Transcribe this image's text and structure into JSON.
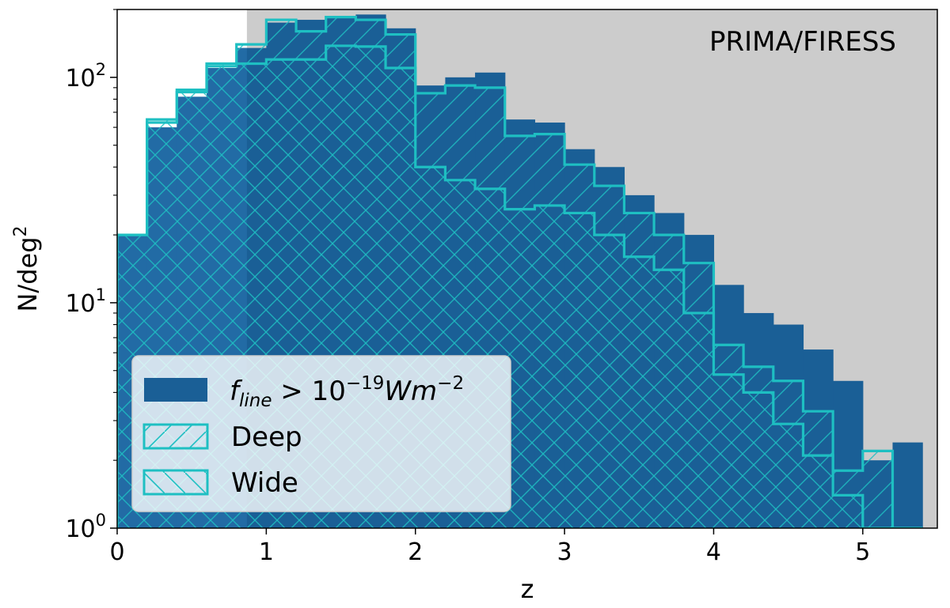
{
  "chart_data": {
    "type": "bar",
    "xlabel": "z",
    "ylabel": "N/deg",
    "ylabel_sup": "2",
    "annotation": "PRIMA/FIRESS",
    "scale_y": "log",
    "xlim": [
      0,
      5.5
    ],
    "ylim": [
      1,
      200
    ],
    "x_ticks": [
      "0",
      "1",
      "2",
      "3",
      "4",
      "5"
    ],
    "y_ticks": [
      {
        "base": "10",
        "exp": "0",
        "value": 1
      },
      {
        "base": "10",
        "exp": "1",
        "value": 10
      },
      {
        "base": "10",
        "exp": "2",
        "value": 100
      }
    ],
    "shaded_region": {
      "x_from": 0.87,
      "x_to": 5.5
    },
    "bin_edges": [
      0,
      0.2,
      0.4,
      0.6,
      0.8,
      1.0,
      1.2,
      1.4,
      1.6,
      1.8,
      2.0,
      2.2,
      2.4,
      2.6,
      2.8,
      3.0,
      3.2,
      3.4,
      3.6,
      3.8,
      4.0,
      4.2,
      4.4,
      4.6,
      4.8,
      5.0,
      5.2,
      5.4
    ],
    "series": [
      {
        "name": "f_line > 10^-19 Wm^-2",
        "style": "filled",
        "values": [
          20,
          60,
          82,
          110,
          135,
          175,
          180,
          185,
          190,
          165,
          92,
          100,
          105,
          65,
          63,
          48,
          40,
          30,
          25,
          20,
          12,
          9,
          8,
          6.2,
          4.5,
          2,
          2.4,
          1.2
        ]
      },
      {
        "name": "Deep",
        "style": "hatch-forward",
        "values": [
          20,
          65,
          88,
          115,
          140,
          180,
          160,
          185,
          180,
          155,
          85,
          92,
          90,
          55,
          56,
          41,
          33,
          25,
          20,
          15,
          6.5,
          5.2,
          4.5,
          3.3,
          1.8,
          2.2,
          1.0,
          1.0
        ]
      },
      {
        "name": "Wide",
        "style": "hatch-back",
        "values": [
          20,
          63,
          86,
          112,
          115,
          120,
          120,
          138,
          137,
          110,
          40,
          35,
          32,
          26,
          27,
          25,
          20,
          16,
          14,
          9,
          4.8,
          4.0,
          2.9,
          2.1,
          1.4,
          1.0,
          1.0,
          1.0
        ]
      }
    ],
    "legend": {
      "position": "lower-left",
      "entries": [
        {
          "base": "f",
          "sub": "line",
          "mid": " > 10",
          "sup": "−19",
          "tail": "Wm",
          "sup2": "−2"
        },
        {
          "label": "Deep"
        },
        {
          "label": "Wide"
        }
      ]
    },
    "colors": {
      "bar_fill": "#1a5f96",
      "bar_fill_left": "#2a74b2",
      "outline": "#1ebfc2",
      "shade": "#cccccc"
    }
  }
}
